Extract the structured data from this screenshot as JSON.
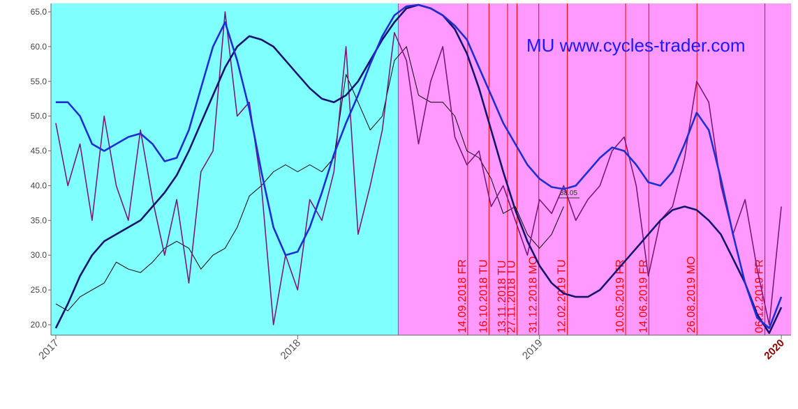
{
  "chart_data": {
    "type": "line",
    "title": "MU www.cycles-trader.com",
    "annotation": "38.05",
    "xlim": [
      2016.98,
      2020.04
    ],
    "xticks": [
      2017,
      2018,
      2019,
      2020
    ],
    "xtick_label_colors": [
      "#555555",
      "#555555",
      "#555555",
      "#8b0000"
    ],
    "ylim": [
      18.5,
      66.2
    ],
    "yticks": [
      {
        "value": 20,
        "label": "20.0"
      },
      {
        "value": 25,
        "label": "25.0"
      },
      {
        "value": 30,
        "label": "30.0"
      },
      {
        "value": 35,
        "label": "35.0"
      },
      {
        "value": 40,
        "label": "40.0"
      },
      {
        "value": 45,
        "label": "45.0"
      },
      {
        "value": 50,
        "label": "50.0"
      },
      {
        "value": 55,
        "label": "55.0"
      },
      {
        "value": 60,
        "label": "60.0"
      },
      {
        "value": 65,
        "label": "65.0"
      }
    ],
    "split": 2018.416,
    "left_color": "#80ffff",
    "right_color": "#ff99ff",
    "marker_color": "#ff0000",
    "markers": [
      {
        "label": "14.09.2018 FR",
        "x": 2018.703
      },
      {
        "label": "16.10.2018 TU",
        "x": 2018.791
      },
      {
        "label": "13.11.2018 TU",
        "x": 2018.868
      },
      {
        "label": "27.11.2018 TU",
        "x": 2018.907
      },
      {
        "label": "31.12.2018 MO",
        "x": 2018.997
      },
      {
        "label": "12.02.2019 TU",
        "x": 2019.115
      },
      {
        "label": "10.05.2019 FR",
        "x": 2019.356
      },
      {
        "label": "14.06.2019 FR",
        "x": 2019.452
      },
      {
        "label": "26.08.2019 MO",
        "x": 2019.651
      },
      {
        "label": "06.12.2019 FR",
        "x": 2019.932
      }
    ],
    "x": [
      2017,
      2017.05,
      2017.1,
      2017.15,
      2017.2,
      2017.25,
      2017.3,
      2017.35,
      2017.4,
      2017.45,
      2017.5,
      2017.55,
      2017.6,
      2017.65,
      2017.7,
      2017.75,
      2017.8,
      2017.85,
      2017.9,
      2017.95,
      2018,
      2018.05,
      2018.1,
      2018.15,
      2018.2,
      2018.25,
      2018.3,
      2018.35,
      2018.4,
      2018.45,
      2018.5,
      2018.55,
      2018.6,
      2018.65,
      2018.7,
      2018.75,
      2018.8,
      2018.85,
      2018.9,
      2018.95,
      2019,
      2019.05,
      2019.1,
      2019.15,
      2019.2,
      2019.25,
      2019.3,
      2019.35,
      2019.4,
      2019.45,
      2019.5,
      2019.55,
      2019.6,
      2019.65,
      2019.7,
      2019.75,
      2019.8,
      2019.85,
      2019.9,
      2019.95,
      2020
    ],
    "series": [
      {
        "color": "#000000",
        "width": 1,
        "values": [
          23,
          22,
          24,
          25,
          26,
          29,
          28,
          27.5,
          29,
          31,
          32,
          31,
          28,
          30,
          31,
          34,
          38.5,
          40,
          42,
          43,
          42,
          43,
          42,
          44,
          56,
          52,
          48,
          50,
          58,
          60,
          53,
          52,
          52,
          50,
          45,
          44,
          41,
          36,
          37,
          33,
          31,
          33,
          37,
          null,
          null,
          null,
          null,
          null,
          null,
          null,
          null,
          null,
          null,
          null,
          null,
          null,
          null,
          null,
          null,
          null,
          null
        ]
      },
      {
        "color": "#7a1a7a",
        "width": 1.6,
        "values": [
          49,
          40,
          46,
          35,
          50,
          40,
          35,
          48,
          38,
          30,
          38,
          26,
          42,
          45,
          65,
          50,
          52,
          40,
          20,
          30,
          25,
          38,
          35,
          42,
          60,
          33,
          40,
          48,
          62,
          58,
          46,
          55,
          60,
          47,
          43,
          45,
          37,
          40,
          35,
          30,
          38,
          36,
          40,
          35,
          38,
          40,
          45,
          47,
          40,
          27,
          35,
          37,
          44,
          55,
          52,
          40,
          33,
          38,
          28,
          20,
          37
        ]
      },
      {
        "color": "#141470",
        "width": 2.6,
        "values": [
          19.5,
          23,
          27,
          30,
          32,
          33,
          34,
          35,
          37,
          39,
          41.5,
          45,
          49,
          53,
          57,
          60,
          61.5,
          61,
          60,
          58,
          56,
          54,
          52.5,
          52,
          53,
          55,
          58,
          61,
          63.5,
          65.5,
          66,
          65.5,
          64.5,
          62.5,
          59,
          54,
          48,
          42,
          36.5,
          32,
          28.5,
          26,
          24.5,
          24,
          24,
          25,
          27,
          29,
          31,
          33,
          35,
          36.5,
          37,
          36.5,
          35,
          33,
          29.5,
          26,
          21.5,
          18.8,
          22.5
        ]
      },
      {
        "color": "#1e2ed2",
        "width": 2.6,
        "values": [
          52,
          52,
          50,
          46,
          45,
          46,
          47,
          47.5,
          46,
          43.5,
          44,
          48,
          54,
          60,
          63.5,
          58,
          51,
          42,
          34,
          30,
          30.5,
          34,
          39,
          44.5,
          49,
          53,
          57.5,
          61.5,
          64.5,
          65.8,
          66,
          65.5,
          64.5,
          63,
          61,
          57,
          53,
          49,
          46,
          43,
          41,
          39.8,
          39.5,
          40,
          42,
          44,
          45.5,
          45,
          43,
          40.5,
          40,
          42,
          46,
          50.5,
          48,
          41,
          33,
          26,
          21,
          19.5,
          24
        ]
      }
    ]
  }
}
